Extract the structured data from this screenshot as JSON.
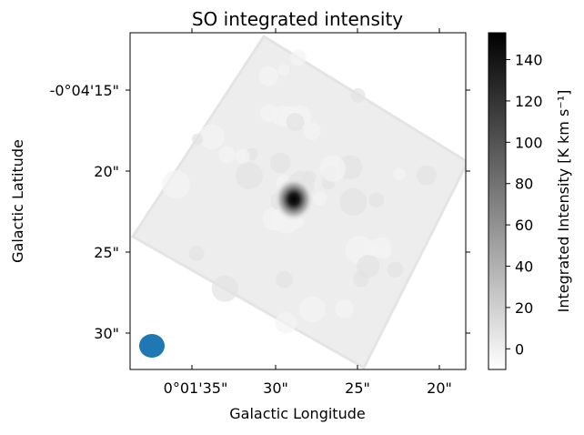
{
  "chart_data": {
    "type": "heatmap",
    "title": "SO integrated intensity",
    "xlabel": "Galactic Longitude",
    "ylabel": "Galactic Latitude",
    "x_ticks": [
      "0°01'35\"",
      "30\"",
      "25\"",
      "20\""
    ],
    "y_ticks": [
      "-0°04'15\"",
      "20\"",
      "25\"",
      "30\""
    ],
    "colorbar": {
      "label": "Integrated Intensity [K km s⁻¹]",
      "colormap": "gray_r",
      "vmin": -10,
      "vmax": 153,
      "ticks": [
        0,
        20,
        40,
        60,
        80,
        100,
        120,
        140
      ]
    },
    "map": {
      "background_level": 6,
      "peak": {
        "value": 153,
        "description": "compact emission peak near image centre"
      },
      "coverage": "rotated square footprint (~45°)"
    },
    "beam": {
      "color": "#1f77b4",
      "shape": "ellipse"
    },
    "grid": false,
    "legend": "none"
  }
}
